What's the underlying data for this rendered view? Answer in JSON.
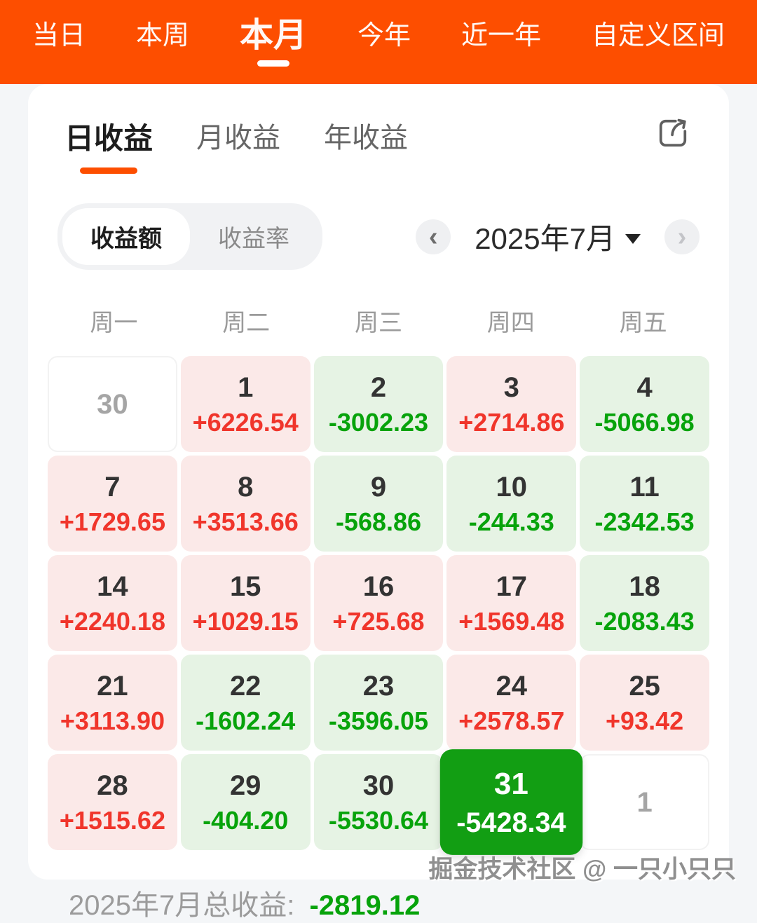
{
  "topbar": {
    "tabs": [
      {
        "label": "当日",
        "active": false
      },
      {
        "label": "本周",
        "active": false
      },
      {
        "label": "本月",
        "active": true
      },
      {
        "label": "今年",
        "active": false
      },
      {
        "label": "近一年",
        "active": false
      },
      {
        "label": "自定义区间",
        "active": false
      }
    ]
  },
  "card": {
    "tabs": [
      {
        "label": "日收益",
        "active": true
      },
      {
        "label": "月收益",
        "active": false
      },
      {
        "label": "年收益",
        "active": false
      }
    ],
    "share_icon": "share-export-icon",
    "toggle": [
      {
        "label": "收益额",
        "active": true
      },
      {
        "label": "收益率",
        "active": false
      }
    ],
    "month_nav": {
      "prev": "‹",
      "label": "2025年7月",
      "next": "›"
    },
    "weekdays": [
      "周一",
      "周二",
      "周三",
      "周四",
      "周五"
    ],
    "calendar": {
      "cells": [
        {
          "day": "30",
          "value": "",
          "type": "muted"
        },
        {
          "day": "1",
          "value": "+6226.54",
          "type": "gain"
        },
        {
          "day": "2",
          "value": "-3002.23",
          "type": "loss"
        },
        {
          "day": "3",
          "value": "+2714.86",
          "type": "gain"
        },
        {
          "day": "4",
          "value": "-5066.98",
          "type": "loss"
        },
        {
          "day": "7",
          "value": "+1729.65",
          "type": "gain"
        },
        {
          "day": "8",
          "value": "+3513.66",
          "type": "gain"
        },
        {
          "day": "9",
          "value": "-568.86",
          "type": "loss"
        },
        {
          "day": "10",
          "value": "-244.33",
          "type": "loss"
        },
        {
          "day": "11",
          "value": "-2342.53",
          "type": "loss"
        },
        {
          "day": "14",
          "value": "+2240.18",
          "type": "gain"
        },
        {
          "day": "15",
          "value": "+1029.15",
          "type": "gain"
        },
        {
          "day": "16",
          "value": "+725.68",
          "type": "gain"
        },
        {
          "day": "17",
          "value": "+1569.48",
          "type": "gain"
        },
        {
          "day": "18",
          "value": "-2083.43",
          "type": "loss"
        },
        {
          "day": "21",
          "value": "+3113.90",
          "type": "gain"
        },
        {
          "day": "22",
          "value": "-1602.24",
          "type": "loss"
        },
        {
          "day": "23",
          "value": "-3596.05",
          "type": "loss"
        },
        {
          "day": "24",
          "value": "+2578.57",
          "type": "gain"
        },
        {
          "day": "25",
          "value": "+93.42",
          "type": "gain"
        },
        {
          "day": "28",
          "value": "+1515.62",
          "type": "gain"
        },
        {
          "day": "29",
          "value": "-404.20",
          "type": "loss"
        },
        {
          "day": "30",
          "value": "-5530.64",
          "type": "loss"
        },
        {
          "day": "31",
          "value": "-5428.34",
          "type": "selected"
        },
        {
          "day": "1",
          "value": "",
          "type": "muted"
        }
      ]
    },
    "total": {
      "label": "2025年7月总收益:",
      "value": "-2819.12"
    }
  },
  "watermark": "掘金技术社区 @ 一只小只只",
  "colors": {
    "accent_orange": "#fd4e00",
    "gain_red": "#f0352b",
    "loss_green": "#07a30b",
    "loss_bg": "#e6f3e4",
    "gain_bg": "#fbe9e8",
    "selected_green": "#129e13"
  }
}
